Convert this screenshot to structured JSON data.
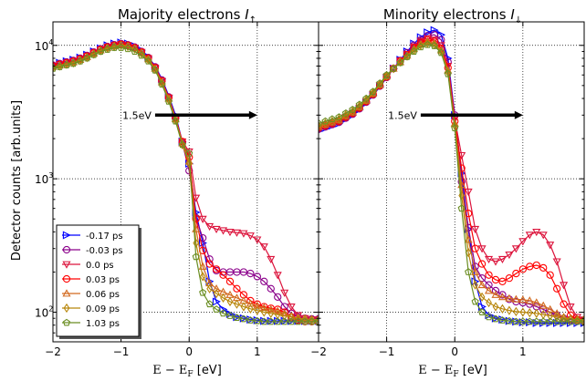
{
  "chart_data": {
    "type": "line",
    "y_scale": "log",
    "grid": "dotted",
    "ylabel": "Detector counts [arb.units]",
    "xlabel": "E − E",
    "xlabel_sub": "F",
    "xlabel_unit": " [eV]",
    "xlim": [
      -2,
      1.9
    ],
    "ylim": [
      60,
      15000
    ],
    "x_ticks": [
      -2,
      -1,
      0,
      1
    ],
    "x_tick_labels": [
      "−2",
      "−1",
      "0",
      "1"
    ],
    "y_ticks": [
      100,
      1000,
      10000
    ],
    "y_tick_labels": [
      "10",
      "10",
      "10"
    ],
    "y_tick_exps": [
      "2",
      "3",
      "4"
    ],
    "legend": {
      "panel": 0,
      "location": "lower-left"
    },
    "annotation": {
      "text": "1.5eV",
      "x_start": -0.5,
      "x_end": 1.0,
      "y": 3000
    },
    "series_style": [
      {
        "name": "-0.17 ps",
        "color": "#0000ff",
        "marker": "triangle-right"
      },
      {
        "name": "-0.03 ps",
        "color": "#8b008b",
        "marker": "circle"
      },
      {
        "name": "0.0 ps",
        "color": "#dc143c",
        "marker": "triangle-down"
      },
      {
        "name": "0.03 ps",
        "color": "#ff0000",
        "marker": "circle"
      },
      {
        "name": "0.06 ps",
        "color": "#d2691e",
        "marker": "triangle-up"
      },
      {
        "name": "0.09 ps",
        "color": "#b8860b",
        "marker": "diamond"
      },
      {
        "name": "1.03 ps",
        "color": "#6b8e23",
        "marker": "pentagon"
      }
    ],
    "x": [
      -2.0,
      -1.9,
      -1.8,
      -1.7,
      -1.6,
      -1.5,
      -1.4,
      -1.3,
      -1.2,
      -1.1,
      -1.0,
      -0.9,
      -0.8,
      -0.7,
      -0.6,
      -0.5,
      -0.4,
      -0.3,
      -0.2,
      -0.1,
      0.0,
      0.1,
      0.2,
      0.3,
      0.4,
      0.5,
      0.6,
      0.7,
      0.8,
      0.9,
      1.0,
      1.1,
      1.2,
      1.3,
      1.4,
      1.5,
      1.6,
      1.7,
      1.8,
      1.9
    ],
    "panels": [
      {
        "title": "Majority electrons ",
        "title_symbol": "I",
        "title_sub": "↑",
        "series": [
          {
            "name": "-0.17 ps",
            "values": [
              7200,
              7400,
              7600,
              7800,
              8100,
              8500,
              9000,
              9500,
              10000,
              10300,
              10500,
              10300,
              9900,
              9200,
              8200,
              7000,
              5600,
              4200,
              3000,
              1900,
              1300,
              560,
              330,
              170,
              120,
              105,
              97,
              92,
              90,
              88,
              87,
              86,
              86,
              86,
              86,
              86,
              86,
              86,
              86,
              86
            ]
          },
          {
            "name": "-0.03 ps",
            "values": [
              7100,
              7300,
              7500,
              7700,
              8000,
              8400,
              8900,
              9400,
              9800,
              10100,
              10300,
              10100,
              9700,
              9000,
              8100,
              6900,
              5500,
              4100,
              2900,
              1850,
              1150,
              510,
              360,
              250,
              205,
              200,
              200,
              200,
              200,
              195,
              185,
              170,
              150,
              130,
              110,
              98,
              92,
              90,
              89,
              89
            ]
          },
          {
            "name": "0.0 ps",
            "values": [
              7000,
              7200,
              7400,
              7600,
              7900,
              8300,
              8800,
              9300,
              9700,
              10000,
              10200,
              10000,
              9600,
              8900,
              8000,
              6800,
              5400,
              4050,
              2850,
              1900,
              1600,
              720,
              500,
              440,
              420,
              410,
              400,
              395,
              390,
              375,
              350,
              310,
              250,
              190,
              140,
              110,
              95,
              90,
              88,
              88
            ]
          },
          {
            "name": "0.03 ps",
            "values": [
              7000,
              7200,
              7400,
              7600,
              7900,
              8300,
              8800,
              9300,
              9700,
              10000,
              10200,
              10000,
              9600,
              8900,
              8000,
              6800,
              5400,
              4050,
              2850,
              1900,
              1450,
              500,
              290,
              230,
              210,
              190,
              170,
              150,
              135,
              122,
              115,
              110,
              107,
              105,
              100,
              92,
              87,
              85,
              85,
              85
            ]
          },
          {
            "name": "0.06 ps",
            "values": [
              6900,
              7100,
              7300,
              7500,
              7800,
              8200,
              8700,
              9200,
              9600,
              9900,
              10100,
              9900,
              9500,
              8800,
              7900,
              6700,
              5300,
              4000,
              2800,
              1850,
              1350,
              420,
              220,
              165,
              150,
              142,
              135,
              128,
              122,
              116,
              112,
              108,
              105,
              102,
              98,
              93,
              89,
              87,
              86,
              86
            ]
          },
          {
            "name": "0.09 ps",
            "values": [
              6800,
              7000,
              7200,
              7400,
              7700,
              8100,
              8600,
              9100,
              9500,
              9800,
              10000,
              9800,
              9400,
              8700,
              7800,
              6600,
              5200,
              3900,
              2750,
              1800,
              1300,
              330,
              185,
              150,
              138,
              128,
              120,
              115,
              110,
              106,
              103,
              100,
              98,
              96,
              94,
              92,
              90,
              89,
              88,
              88
            ]
          },
          {
            "name": "1.03 ps",
            "values": [
              6700,
              6900,
              7100,
              7300,
              7600,
              8000,
              8500,
              9000,
              9300,
              9600,
              9600,
              9400,
              9000,
              8400,
              7600,
              6500,
              5100,
              3800,
              2700,
              1800,
              1550,
              260,
              140,
              115,
              105,
              98,
              94,
              91,
              89,
              87,
              86,
              85,
              85,
              85,
              85,
              85,
              85,
              85,
              85,
              85
            ]
          }
        ]
      },
      {
        "title": "Minority electrons ",
        "title_symbol": "I",
        "title_sub": "↓",
        "series": [
          {
            "name": "-0.17 ps",
            "values": [
              2300,
              2400,
              2500,
              2600,
              2800,
              3000,
              3300,
              3700,
              4200,
              4900,
              5700,
              6700,
              7800,
              9000,
              10300,
              11500,
              12500,
              13000,
              12000,
              8000,
              3000,
              1100,
              420,
              170,
              110,
              95,
              90,
              88,
              86,
              85,
              84,
              84,
              83,
              83,
              83,
              83,
              83,
              83,
              83,
              83
            ]
          },
          {
            "name": "-0.03 ps",
            "values": [
              2350,
              2450,
              2550,
              2650,
              2850,
              3050,
              3350,
              3750,
              4250,
              4950,
              5750,
              6700,
              7700,
              8800,
              10000,
              11000,
              11800,
              12000,
              11000,
              7500,
              3000,
              950,
              430,
              220,
              180,
              160,
              145,
              135,
              125,
              120,
              118,
              115,
              110,
              105,
              100,
              95,
              90,
              88,
              87,
              87
            ]
          },
          {
            "name": "0.0 ps",
            "values": [
              2400,
              2500,
              2600,
              2700,
              2900,
              3100,
              3400,
              3800,
              4300,
              5000,
              5800,
              6700,
              7700,
              8600,
              9800,
              10800,
              11300,
              11000,
              10000,
              7000,
              2800,
              1500,
              800,
              420,
              300,
              250,
              240,
              250,
              270,
              300,
              340,
              380,
              400,
              380,
              320,
              240,
              160,
              110,
              92,
              88
            ]
          },
          {
            "name": "0.03 ps",
            "values": [
              2400,
              2500,
              2600,
              2700,
              2900,
              3100,
              3400,
              3800,
              4300,
              5000,
              5800,
              6700,
              7600,
              8500,
              9600,
              10500,
              11000,
              10700,
              9500,
              6800,
              2700,
              1200,
              550,
              300,
              230,
              190,
              175,
              170,
              180,
              195,
              210,
              220,
              225,
              215,
              190,
              150,
              115,
              95,
              88,
              86
            ]
          },
          {
            "name": "0.06 ps",
            "values": [
              2450,
              2550,
              2650,
              2750,
              2950,
              3150,
              3450,
              3850,
              4350,
              5050,
              5850,
              6700,
              7500,
              8400,
              9400,
              10200,
              10700,
              10400,
              9200,
              6500,
              2600,
              900,
              350,
              200,
              160,
              145,
              135,
              130,
              127,
              125,
              124,
              122,
              118,
              112,
              105,
              98,
              92,
              89,
              87,
              87
            ]
          },
          {
            "name": "0.09 ps",
            "values": [
              2500,
              2600,
              2700,
              2800,
              3000,
              3200,
              3500,
              3900,
              4400,
              5100,
              5900,
              6700,
              7500,
              8300,
              9200,
              10000,
              10400,
              10100,
              9000,
              6300,
              2500,
              750,
              280,
              160,
              130,
              118,
              110,
              106,
              103,
              101,
              100,
              99,
              98,
              96,
              94,
              92,
              90,
              89,
              88,
              88
            ]
          },
          {
            "name": "1.03 ps",
            "values": [
              2600,
              2700,
              2800,
              2900,
              3100,
              3300,
              3600,
              4000,
              4500,
              5200,
              6000,
              6700,
              7400,
              8200,
              9000,
              9700,
              10100,
              9900,
              8800,
              6100,
              2400,
              600,
              200,
              120,
              100,
              92,
              89,
              87,
              86,
              85,
              85,
              85,
              85,
              85,
              85,
              85,
              85,
              85,
              85,
              85
            ]
          }
        ]
      }
    ]
  }
}
